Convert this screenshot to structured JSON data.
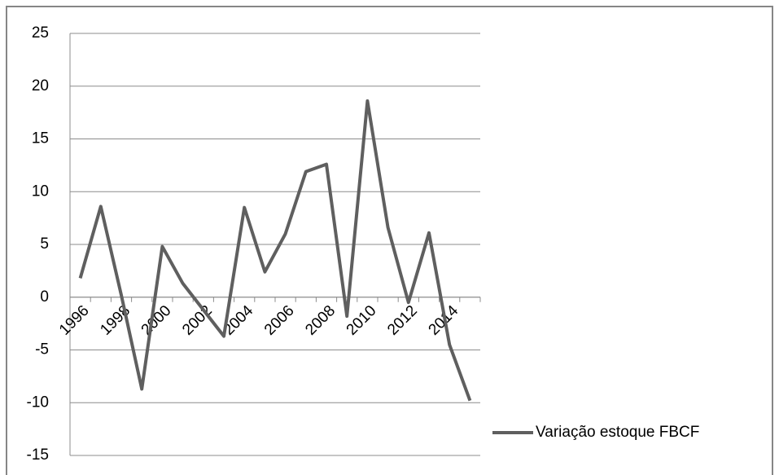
{
  "chart_data": {
    "type": "line",
    "categories": [
      "1996",
      null,
      "1998",
      null,
      "2000",
      null,
      "2002",
      null,
      "2004",
      null,
      "2006",
      null,
      "2008",
      null,
      "2010",
      null,
      "2012",
      null,
      "2014",
      null
    ],
    "series": [
      {
        "name": "Variação estoque FBCF",
        "color": "#5f5f5f",
        "values": [
          1.8,
          8.6,
          0.2,
          -8.7,
          4.8,
          1.3,
          -1.2,
          -3.7,
          8.5,
          2.4,
          6.0,
          11.9,
          12.6,
          -1.8,
          18.6,
          6.6,
          -0.5,
          6.1,
          -4.5,
          -9.8
        ]
      }
    ],
    "ylim": [
      -15,
      25
    ],
    "yticks": [
      -15,
      -10,
      -5,
      0,
      5,
      10,
      15,
      20,
      25
    ],
    "grid": true,
    "legend": "right"
  }
}
